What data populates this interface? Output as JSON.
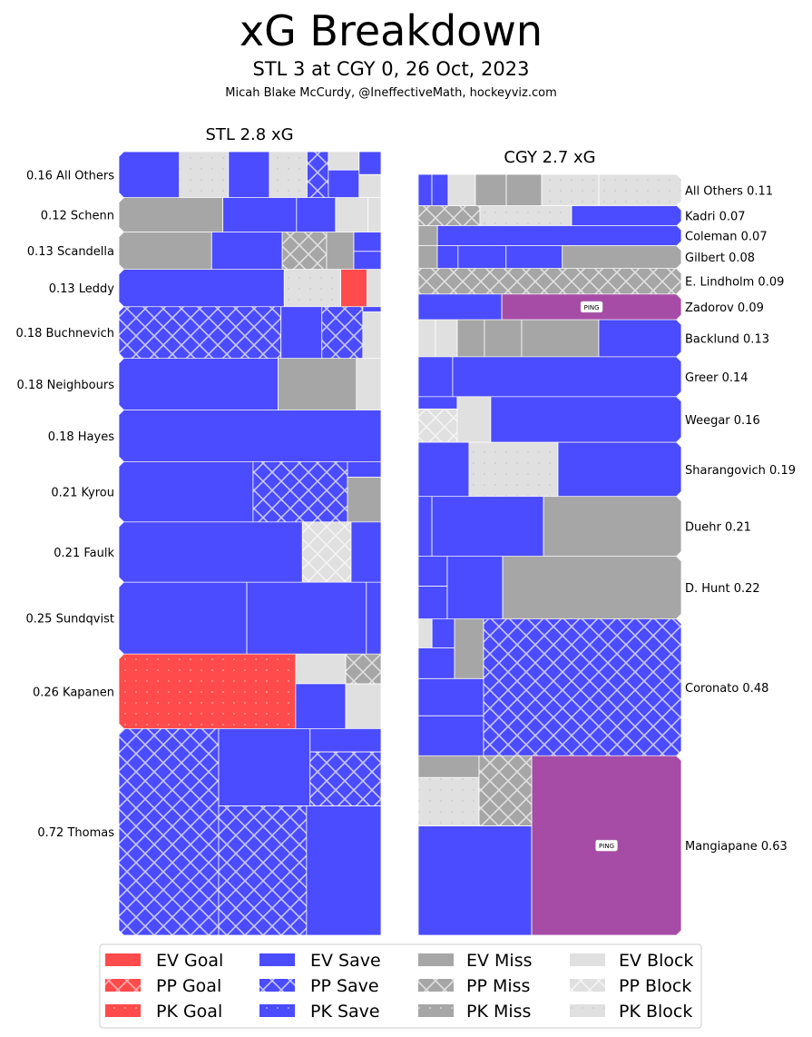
{
  "title": "xG Breakdown",
  "subtitle": "STL 3 at CGY 0, 26 Oct, 2023",
  "credit": "Micah Blake McCurdy, @IneffectiveMath, hockeyviz.com",
  "colors": {
    "goal": "#ff4b4b",
    "save": "#4b4bff",
    "miss": "#a6a6a6",
    "block": "#e0e0e0",
    "ping": "#a64ca6"
  },
  "ping_label": "PING",
  "legend": {
    "placement": "bottom",
    "items": [
      "EV Goal",
      "PP Goal",
      "PK Goal",
      "EV Save",
      "PP Save",
      "PK Save",
      "EV Miss",
      "PP Miss",
      "PK Miss",
      "EV Block",
      "PP Block",
      "PK Block"
    ]
  },
  "chart_data": [
    {
      "type": "treemap",
      "team": "STL",
      "title": "STL 2.8 xG",
      "label_side": "left",
      "players": [
        {
          "name": "All Others",
          "xg": 0.16,
          "label": "0.16 All Others",
          "shots": [
            {
              "type": "EV Save",
              "xg": 0.037
            },
            {
              "type": "PK Block",
              "xg": 0.03
            },
            {
              "type": "EV Save",
              "xg": 0.025
            },
            {
              "type": "PK Block",
              "xg": 0.023
            },
            {
              "type": "PP Save",
              "xg": 0.013
            },
            [
              {
                "type": "EV Block",
                "xg": 0.0075
              },
              {
                "type": "EV Save",
                "xg": 0.0113
              }
            ],
            [
              {
                "type": "EV Save",
                "xg": 0.0067
              },
              {
                "type": "EV Block",
                "xg": 0.0067
              }
            ]
          ]
        },
        {
          "name": "Schenn",
          "xg": 0.12,
          "label": "0.12 Schenn",
          "shots": [
            {
              "type": "EV Miss",
              "xg": 0.048
            },
            {
              "type": "EV Save",
              "xg": 0.034
            },
            {
              "type": "EV Save",
              "xg": 0.018
            },
            {
              "type": "EV Block",
              "xg": 0.015
            },
            {
              "type": "EV Block",
              "xg": 0.006
            }
          ]
        },
        {
          "name": "Scandella",
          "xg": 0.13,
          "label": "0.13 Scandella",
          "shots": [
            {
              "type": "EV Miss",
              "xg": 0.046
            },
            {
              "type": "EV Save",
              "xg": 0.035
            },
            {
              "type": "PP Miss",
              "xg": 0.022
            },
            {
              "type": "EV Miss",
              "xg": 0.0135
            },
            [
              {
                "type": "EV Save",
                "xg": 0.007
              },
              {
                "type": "EV Save",
                "xg": 0.0065
              }
            ]
          ]
        },
        {
          "name": "Leddy",
          "xg": 0.13,
          "label": "0.13 Leddy",
          "shots": [
            {
              "type": "EV Save",
              "xg": 0.082
            },
            {
              "type": "PK Block",
              "xg": 0.028
            },
            {
              "type": "EV Goal",
              "xg": 0.013
            },
            {
              "type": "EV Block",
              "xg": 0.007
            }
          ]
        },
        {
          "name": "Buchnevich",
          "xg": 0.18,
          "label": "0.18 Buchnevich",
          "shots": [
            {
              "type": "PP Save",
              "xg": 0.111
            },
            {
              "type": "EV Save",
              "xg": 0.028
            },
            {
              "type": "PP Save",
              "xg": 0.028
            },
            [
              {
                "type": "EV Save",
                "xg": 0.0013
              },
              {
                "type": "EV Block",
                "xg": 0.0112
              }
            ]
          ]
        },
        {
          "name": "Neighbours",
          "xg": 0.18,
          "label": "0.18 Neighbours",
          "shots": [
            {
              "type": "EV Save",
              "xg": 0.11
            },
            {
              "type": "EV Miss",
              "xg": 0.054
            },
            {
              "type": "EV Block",
              "xg": 0.017
            }
          ]
        },
        {
          "name": "Hayes",
          "xg": 0.18,
          "label": "0.18 Hayes",
          "shots": [
            {
              "type": "EV Save",
              "xg": 0.18
            }
          ]
        },
        {
          "name": "Kyrou",
          "xg": 0.21,
          "label": "0.21 Kyrou",
          "shots": [
            {
              "type": "EV Save",
              "xg": 0.108
            },
            {
              "type": "PP Save",
              "xg": 0.076
            },
            [
              {
                "type": "EV Save",
                "xg": 0.007
              },
              {
                "type": "EV Miss",
                "xg": 0.02
              }
            ]
          ]
        },
        {
          "name": "Faulk",
          "xg": 0.21,
          "label": "0.21 Faulk",
          "shots": [
            {
              "type": "EV Save",
              "xg": 0.147
            },
            {
              "type": "PP Block",
              "xg": 0.039
            },
            {
              "type": "EV Save",
              "xg": 0.024
            }
          ]
        },
        {
          "name": "Sundqvist",
          "xg": 0.25,
          "label": "0.25 Sundqvist",
          "shots": [
            {
              "type": "EV Save",
              "xg": 0.122
            },
            {
              "type": "EV Save",
              "xg": 0.114
            },
            {
              "type": "EV Save",
              "xg": 0.014
            }
          ]
        },
        {
          "name": "Kapanen",
          "xg": 0.26,
          "label": "0.26 Kapanen",
          "shots": [
            {
              "type": "PK Goal",
              "xg": 0.175
            },
            [
              {
                "type": "EV Block",
                "xg": 0.0197
              },
              {
                "type": "EV Save",
                "xg": 0.0298
              }
            ],
            [
              {
                "type": "PP Miss",
                "xg": 0.014
              },
              {
                "type": "EV Block",
                "xg": 0.021
              }
            ]
          ]
        },
        {
          "name": "Thomas",
          "xg": 0.72,
          "label": "0.72 Thomas",
          "shots": [
            {
              "type": "PP Save",
              "xg": 0.274
            },
            [
              [
                {
                  "type": "EV Save",
                  "xg": 0.094
                },
                [
                  {
                    "type": "EV Save",
                    "xg": 0.022
                  },
                  {
                    "type": "PP Save",
                    "xg": 0.051
                  }
                ]
              ],
              [
                {
                  "type": "PP Save",
                  "xg": 0.151
                },
                {
                  "type": "EV Save",
                  "xg": 0.128
                }
              ]
            ]
          ]
        }
      ]
    },
    {
      "type": "treemap",
      "team": "CGY",
      "title": "CGY 2.7 xG",
      "label_side": "right",
      "players": [
        {
          "name": "All Others",
          "xg": 0.11,
          "label": "All Others 0.11",
          "shots": [
            {
              "type": "EV Save",
              "xg": 0.0057
            },
            {
              "type": "EV Save",
              "xg": 0.0068
            },
            {
              "type": "EV Block",
              "xg": 0.0114
            },
            {
              "type": "EV Miss",
              "xg": 0.0129
            },
            {
              "type": "EV Miss",
              "xg": 0.0148
            },
            {
              "type": "PK Block",
              "xg": 0.0239
            },
            {
              "type": "PK Block",
              "xg": 0.0345
            }
          ]
        },
        {
          "name": "Kadri",
          "xg": 0.07,
          "label": "Kadri 0.07",
          "shots": [
            {
              "type": "PP Miss",
              "xg": 0.0164
            },
            {
              "type": "PK Block",
              "xg": 0.0244
            },
            {
              "type": "EV Save",
              "xg": 0.0292
            }
          ]
        },
        {
          "name": "Coleman",
          "xg": 0.07,
          "label": "Coleman 0.07",
          "shots": [
            {
              "type": "EV Miss",
              "xg": 0.0051
            },
            {
              "type": "EV Save",
              "xg": 0.0649
            }
          ]
        },
        {
          "name": "Gilbert",
          "xg": 0.08,
          "label": "Gilbert 0.08",
          "shots": [
            {
              "type": "EV Miss",
              "xg": 0.0058
            },
            {
              "type": "EV Save",
              "xg": 0.0063
            },
            {
              "type": "EV Save",
              "xg": 0.0146
            },
            {
              "type": "EV Save",
              "xg": 0.0171
            },
            {
              "type": "EV Miss",
              "xg": 0.0362
            }
          ]
        },
        {
          "name": "E. Lindholm",
          "xg": 0.09,
          "label": "E. Lindholm 0.09",
          "shots": [
            {
              "type": "PP Miss",
              "xg": 0.09
            }
          ]
        },
        {
          "name": "Zadorov",
          "xg": 0.09,
          "label": "Zadorov 0.09",
          "shots": [
            {
              "type": "EV Save",
              "xg": 0.0286
            },
            {
              "type": "Ping",
              "xg": 0.0614
            }
          ]
        },
        {
          "name": "Backlund",
          "xg": 0.13,
          "label": "Backlund 0.13",
          "shots": [
            {
              "type": "EV Block",
              "xg": 0.0085
            },
            {
              "type": "EV Block",
              "xg": 0.0108
            },
            {
              "type": "EV Miss",
              "xg": 0.0134
            },
            {
              "type": "EV Miss",
              "xg": 0.0184
            },
            {
              "type": "EV Miss",
              "xg": 0.0381
            },
            {
              "type": "EV Save",
              "xg": 0.0408
            }
          ]
        },
        {
          "name": "Greer",
          "xg": 0.14,
          "label": "Greer 0.14",
          "shots": [
            {
              "type": "EV Save",
              "xg": 0.0183
            },
            {
              "type": "EV Save",
              "xg": 0.1217
            }
          ]
        },
        {
          "name": "Weegar",
          "xg": 0.16,
          "label": "Weegar 0.16",
          "shots": [
            [
              {
                "type": "EV Save",
                "xg": 0.0064
              },
              {
                "type": "PP Block",
                "xg": 0.0173
              }
            ],
            {
              "type": "EV Block",
              "xg": 0.0204
            },
            {
              "type": "EV Save",
              "xg": 0.1159
            }
          ]
        },
        {
          "name": "Sharangovich",
          "xg": 0.19,
          "label": "Sharangovich 0.19",
          "shots": [
            {
              "type": "EV Save",
              "xg": 0.0367
            },
            {
              "type": "PK Block",
              "xg": 0.0642
            },
            {
              "type": "EV Save",
              "xg": 0.0891
            }
          ]
        },
        {
          "name": "Duehr",
          "xg": 0.21,
          "label": "Duehr 0.21",
          "shots": [
            {
              "type": "EV Save",
              "xg": 0.0109
            },
            {
              "type": "EV Save",
              "xg": 0.0891
            },
            {
              "type": "EV Miss",
              "xg": 0.11
            }
          ]
        },
        {
          "name": "D. Hunt",
          "xg": 0.22,
          "label": "D. Hunt 0.22",
          "shots": [
            [
              {
                "type": "EV Save",
                "xg": 0.0116
              },
              {
                "type": "EV Save",
                "xg": 0.0127
              }
            ],
            {
              "type": "EV Save",
              "xg": 0.0463
            },
            {
              "type": "EV Miss",
              "xg": 0.1494
            }
          ]
        },
        {
          "name": "Coronato",
          "xg": 0.48,
          "label": "Coronato 0.48",
          "shots": [
            [
              [
                [
                  [
                    {
                      "type": "EV Block",
                      "xg": 0.0053
                    },
                    {
                      "type": "EV Save",
                      "xg": 0.0087
                    }
                  ],
                  {
                    "type": "EV Save",
                    "xg": 0.0149
                  }
                ],
                {
                  "type": "EV Miss",
                  "xg": 0.0231
                }
              ],
              {
                "type": "EV Save",
                "xg": 0.0324
              },
              {
                "type": "EV Save",
                "xg": 0.0348
              }
            ],
            {
              "type": "PP Save",
              "xg": 0.361
            }
          ]
        },
        {
          "name": "Mangiapane",
          "xg": 0.63,
          "label": "Mangiapane 0.63",
          "shots": [
            [
              [
                [
                  {
                    "type": "EV Miss",
                    "xg": 0.0177
                  },
                  {
                    "type": "PK Block",
                    "xg": 0.0392
                  }
                ],
                {
                  "type": "PP Miss",
                  "xg": 0.0493
                }
              ],
              {
                "type": "EV Save",
                "xg": 0.1655
              }
            ],
            {
              "type": "Ping",
              "xg": 0.3584
            }
          ]
        }
      ]
    }
  ]
}
